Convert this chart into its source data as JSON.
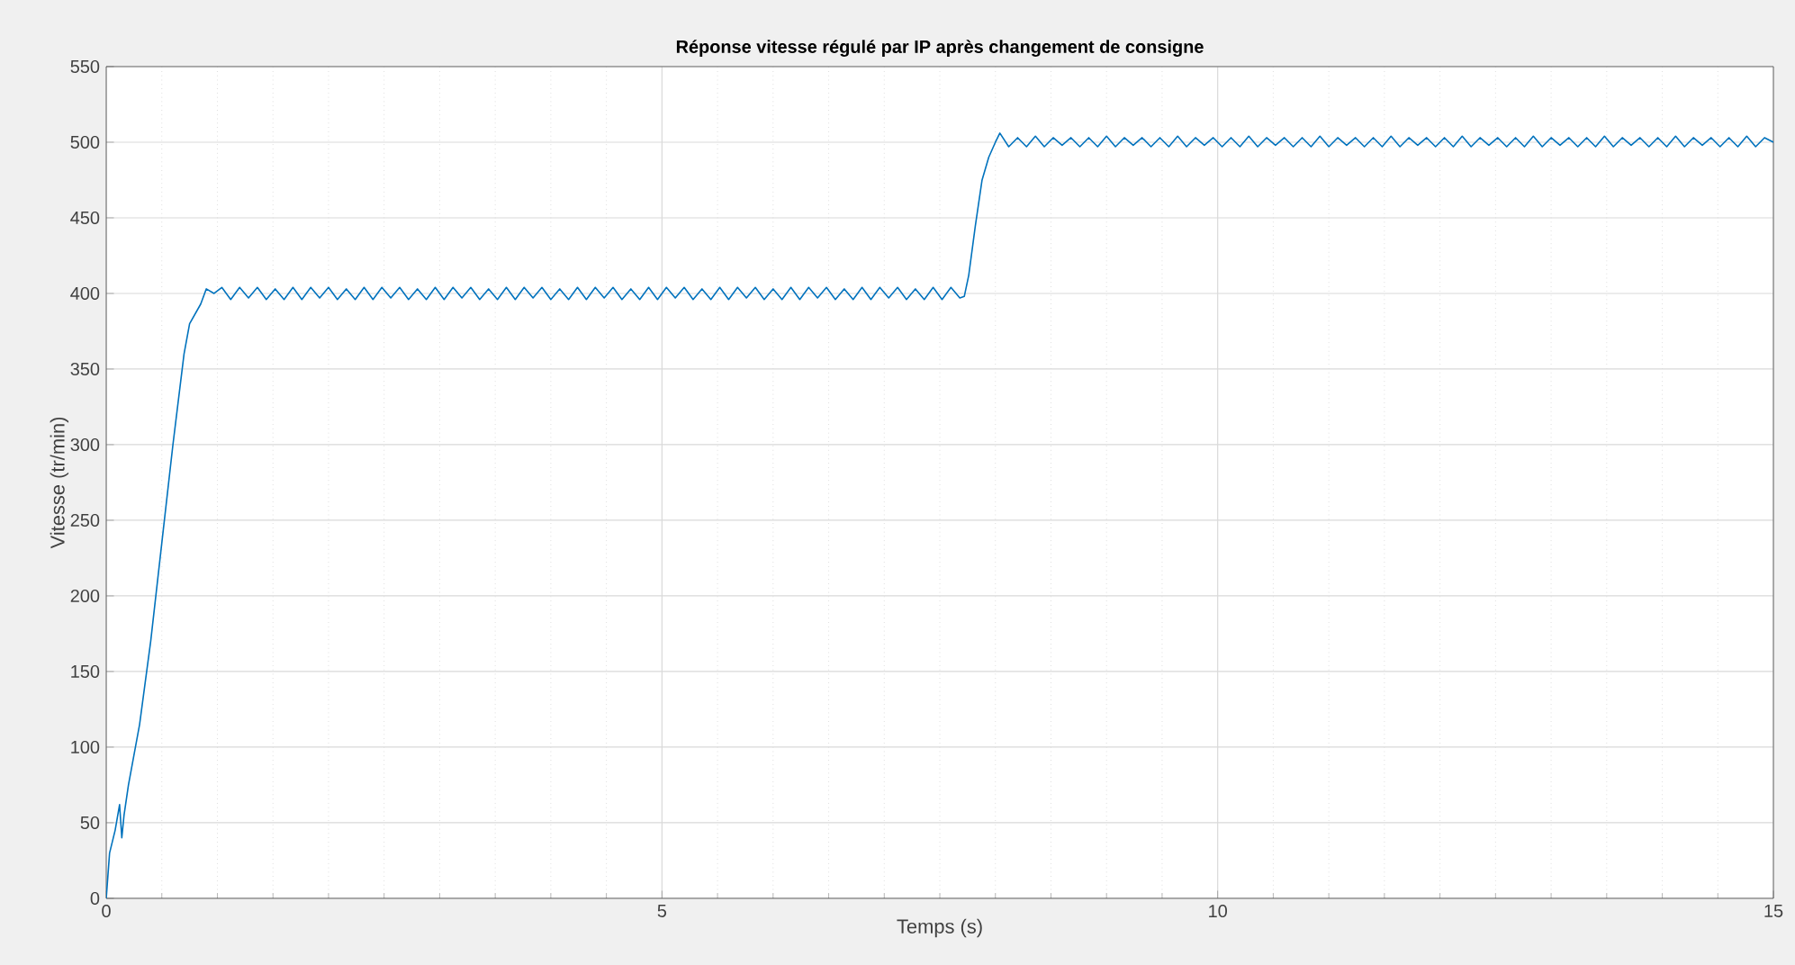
{
  "chart_data": {
    "type": "line",
    "title": "Réponse vitesse régulé par IP après changement de consigne",
    "xlabel": "Temps (s)",
    "ylabel": "Vitesse (tr/min)",
    "xlim": [
      0,
      15
    ],
    "ylim": [
      0,
      550
    ],
    "xticks": [
      0,
      5,
      10,
      15
    ],
    "yticks": [
      0,
      50,
      100,
      150,
      200,
      250,
      300,
      350,
      400,
      450,
      500,
      550
    ],
    "grid": true,
    "marker": "none",
    "line_style": "solid",
    "series": [
      {
        "color": "#0072bd",
        "x": [
          0,
          0.03,
          0.08,
          0.12,
          0.14,
          0.16,
          0.2,
          0.3,
          0.4,
          0.5,
          0.6,
          0.7,
          0.75,
          0.85,
          0.9,
          0.97,
          1.04,
          1.12,
          1.2,
          1.28,
          1.36,
          1.44,
          1.52,
          1.6,
          1.68,
          1.76,
          1.84,
          1.92,
          2,
          2.08,
          2.16,
          2.24,
          2.32,
          2.4,
          2.48,
          2.56,
          2.64,
          2.72,
          2.8,
          2.88,
          2.96,
          3.04,
          3.12,
          3.2,
          3.28,
          3.36,
          3.44,
          3.52,
          3.6,
          3.68,
          3.76,
          3.84,
          3.92,
          4,
          4.08,
          4.16,
          4.24,
          4.32,
          4.4,
          4.48,
          4.56,
          4.64,
          4.72,
          4.8,
          4.88,
          4.96,
          5.04,
          5.12,
          5.2,
          5.28,
          5.36,
          5.44,
          5.52,
          5.6,
          5.68,
          5.76,
          5.84,
          5.92,
          6,
          6.08,
          6.16,
          6.24,
          6.32,
          6.4,
          6.48,
          6.56,
          6.64,
          6.72,
          6.8,
          6.88,
          6.96,
          7.04,
          7.12,
          7.2,
          7.28,
          7.36,
          7.44,
          7.52,
          7.6,
          7.68,
          7.72,
          7.76,
          7.82,
          7.88,
          7.94,
          8,
          8.04,
          8.12,
          8.2,
          8.28,
          8.36,
          8.44,
          8.52,
          8.6,
          8.68,
          8.76,
          8.84,
          8.92,
          9,
          9.08,
          9.16,
          9.24,
          9.32,
          9.4,
          9.48,
          9.56,
          9.64,
          9.72,
          9.8,
          9.88,
          9.96,
          10.04,
          10.12,
          10.2,
          10.28,
          10.36,
          10.44,
          10.52,
          10.6,
          10.68,
          10.76,
          10.84,
          10.92,
          11,
          11.08,
          11.16,
          11.24,
          11.32,
          11.4,
          11.48,
          11.56,
          11.64,
          11.72,
          11.8,
          11.88,
          11.96,
          12.04,
          12.12,
          12.2,
          12.28,
          12.36,
          12.44,
          12.52,
          12.6,
          12.68,
          12.76,
          12.84,
          12.92,
          13,
          13.08,
          13.16,
          13.24,
          13.32,
          13.4,
          13.48,
          13.56,
          13.64,
          13.72,
          13.8,
          13.88,
          13.96,
          14.04,
          14.12,
          14.2,
          14.28,
          14.36,
          14.44,
          14.52,
          14.6,
          14.68,
          14.76,
          14.84,
          14.92,
          15
        ],
        "values": [
          0,
          30,
          45,
          62,
          40,
          55,
          75,
          115,
          170,
          235,
          300,
          360,
          380,
          393,
          403,
          400,
          404,
          396,
          404,
          397,
          404,
          396,
          403,
          396,
          404,
          396,
          404,
          397,
          404,
          396,
          403,
          396,
          404,
          396,
          404,
          397,
          404,
          396,
          403,
          396,
          404,
          396,
          404,
          397,
          404,
          396,
          403,
          396,
          404,
          396,
          404,
          397,
          404,
          396,
          403,
          396,
          404,
          396,
          404,
          397,
          404,
          396,
          403,
          396,
          404,
          396,
          404,
          397,
          404,
          396,
          403,
          396,
          404,
          396,
          404,
          397,
          404,
          396,
          403,
          396,
          404,
          396,
          404,
          397,
          404,
          396,
          403,
          396,
          404,
          396,
          404,
          397,
          404,
          396,
          403,
          396,
          404,
          396,
          404,
          397,
          398,
          412,
          445,
          475,
          490,
          500,
          506,
          497,
          503,
          497,
          504,
          497,
          503,
          498,
          503,
          497,
          503,
          497,
          504,
          497,
          503,
          498,
          503,
          497,
          503,
          497,
          504,
          497,
          503,
          498,
          503,
          497,
          503,
          497,
          504,
          497,
          503,
          498,
          503,
          497,
          503,
          497,
          504,
          497,
          503,
          498,
          503,
          497,
          503,
          497,
          504,
          497,
          503,
          498,
          503,
          497,
          503,
          497,
          504,
          497,
          503,
          498,
          503,
          497,
          503,
          497,
          504,
          497,
          503,
          498,
          503,
          497,
          503,
          497,
          504,
          497,
          503,
          498,
          503,
          497,
          503,
          497,
          504,
          497,
          503,
          498,
          503,
          497,
          503,
          497,
          504,
          497,
          503,
          500
        ]
      }
    ]
  }
}
